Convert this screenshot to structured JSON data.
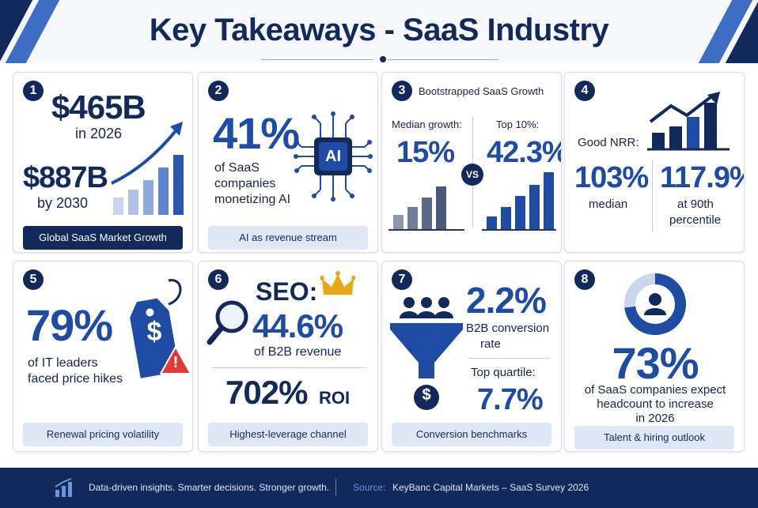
{
  "title": "Key Takeaways - SaaS Industry",
  "colors": {
    "navy": "#13295c",
    "accent": "#1f4ba5",
    "pill": "#dfe7f5",
    "warning": "#e03b3b",
    "gold": "#e6a817"
  },
  "cards": [
    {
      "number": "1",
      "value_top": "$465B",
      "year_top": "in 2026",
      "value_bottom": "$887B",
      "year_bottom": "by 2030",
      "label": "Global SaaS Market Growth",
      "icons": [
        "rising-bar-chart-icon",
        "trend-arrow-icon"
      ]
    },
    {
      "number": "2",
      "value": "41%",
      "desc_line1": "of SaaS",
      "desc_line2": "companies",
      "desc_line3": "monetizing AI",
      "chip_text": "AI",
      "label": "AI as revenue stream",
      "icons": [
        "ai-chip-icon"
      ]
    },
    {
      "number": "3",
      "heading": "Bootstrapped SaaS Growth",
      "left_label": "Median growth:",
      "left_value": "15%",
      "vs": "VS",
      "right_label": "Top 10%:",
      "right_value": "42.3%",
      "icons": [
        "bar-chart-icon"
      ]
    },
    {
      "number": "4",
      "heading": "Good NRR:",
      "left_value": "103%",
      "left_label": "median",
      "right_value": "117.9%",
      "right_label_line1": "at 90th",
      "right_label_line2": "percentile",
      "icons": [
        "growth-chart-icon"
      ]
    },
    {
      "number": "5",
      "value": "79%",
      "desc_line1": "of IT leaders",
      "desc_line2": "faced price hikes",
      "price_symbol": "$",
      "warning_symbol": "!",
      "label": "Renewal pricing volatility",
      "icons": [
        "price-tag-icon",
        "warning-icon"
      ]
    },
    {
      "number": "6",
      "seo_label": "SEO:",
      "value": "44.6%",
      "desc": "of B2B revenue",
      "roi_value": "702%",
      "roi_label": "ROI",
      "label": "Highest-leverage channel",
      "icons": [
        "magnifier-icon",
        "crown-icon"
      ]
    },
    {
      "number": "7",
      "value": "2.2%",
      "desc_line1": "B2B conversion",
      "desc_line2": "rate",
      "quartile_label": "Top quartile:",
      "quartile_value": "7.7%",
      "coin_symbol": "$",
      "label": "Conversion benchmarks",
      "icons": [
        "people-icon",
        "funnel-icon",
        "coin-icon"
      ]
    },
    {
      "number": "8",
      "value": "73%",
      "desc_line1": "of SaaS companies expect",
      "desc_line2": "headcount to increase",
      "desc_line3": "in 2026",
      "donut_fraction": 0.73,
      "label": "Talent & hiring outlook",
      "icons": [
        "donut-person-icon"
      ]
    }
  ],
  "footer": {
    "tagline": "Data-driven insights. Smarter decisions. Stronger growth.",
    "source_label": "Source:",
    "source_text": "KeyBanc Capital Markets – SaaS Survey 2026",
    "icons": [
      "bar-chart-icon"
    ]
  }
}
